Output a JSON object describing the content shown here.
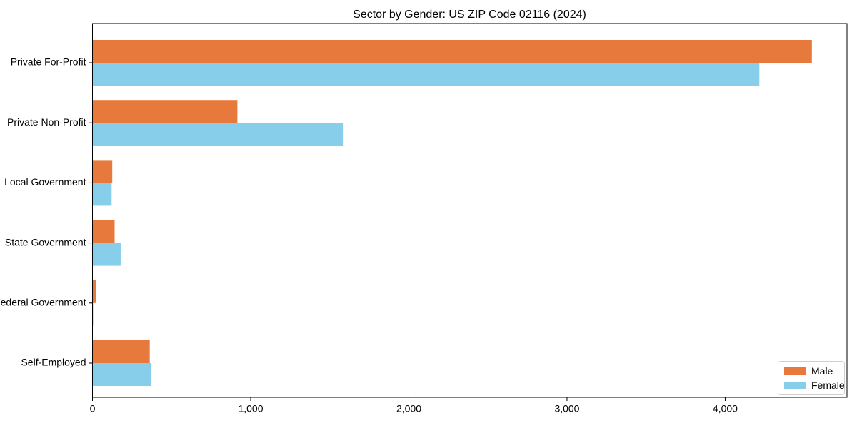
{
  "chart_data": {
    "type": "bar",
    "orientation": "horizontal",
    "title": "Sector by Gender: US ZIP Code 02116 (2024)",
    "xlabel": "",
    "ylabel": "",
    "categories": [
      "Private For-Profit",
      "Private Non-Profit",
      "Local Government",
      "State Government",
      "Federal Government",
      "Self-Employed"
    ],
    "series": [
      {
        "name": "Male",
        "color": "#e8793c",
        "values": [
          4548,
          916,
          125,
          140,
          22,
          362
        ]
      },
      {
        "name": "Female",
        "color": "#87ceeb",
        "values": [
          4216,
          1583,
          121,
          178,
          4,
          372
        ]
      }
    ],
    "xlim": [
      0,
      4770
    ],
    "x_ticks": [
      0,
      1000,
      2000,
      3000,
      4000
    ],
    "x_tick_labels": [
      "0",
      "1,000",
      "2,000",
      "3,000",
      "4,000"
    ],
    "grid": false,
    "legend_position": "lower right",
    "legend_entries": [
      "Male",
      "Female"
    ]
  }
}
